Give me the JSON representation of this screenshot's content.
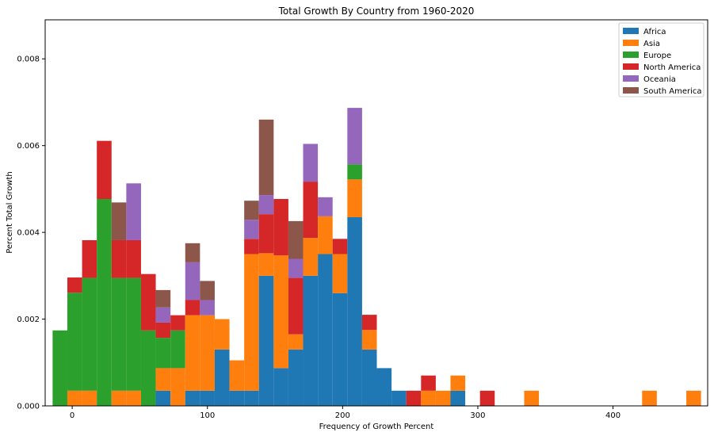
{
  "chart_data": {
    "type": "bar",
    "stacked": true,
    "title": "Total Growth By Country from 1960-2020",
    "xlabel": "Frequency of Growth Percent",
    "ylabel": "Percent Total Growth",
    "xlim": [
      -20,
      470
    ],
    "ylim": [
      0,
      0.0089
    ],
    "xticks": [
      0,
      100,
      200,
      300,
      400
    ],
    "yticks": [
      0,
      0.002,
      0.004,
      0.006,
      0.008
    ],
    "ytick_labels": [
      "0.000",
      "0.002",
      "0.004",
      "0.006",
      "0.008"
    ],
    "grid": false,
    "legend_position": "top-right",
    "bin_start": -14.5,
    "bin_width": 10.9,
    "bins": 44,
    "series": [
      {
        "name": "Africa",
        "color": "#1f77b4",
        "values": [
          0,
          0,
          0,
          0,
          0,
          0,
          0,
          0.00035,
          0,
          0.00035,
          0.00035,
          0.0013,
          0.00035,
          0.00035,
          0.003,
          0.00087,
          0.0013,
          0.003,
          0.0035,
          0.0026,
          0.00435,
          0.0013,
          0.00087,
          0.00035,
          0,
          0,
          0,
          0.00035,
          0,
          0,
          0,
          0,
          0,
          0,
          0,
          0,
          0,
          0,
          0,
          0,
          0,
          0,
          0,
          0
        ]
      },
      {
        "name": "Asia",
        "color": "#ff7f0e",
        "values": [
          0,
          0.00035,
          0.00035,
          0,
          0.00035,
          0.00035,
          0,
          0.00052,
          0.00087,
          0.00174,
          0.00174,
          0.0007,
          0.0007,
          0.00315,
          0.00052,
          0.0026,
          0.00035,
          0.00087,
          0.00087,
          0.0009,
          0.00087,
          0.00045,
          0,
          0,
          0,
          0.00035,
          0.00035,
          0.00035,
          0,
          0,
          0,
          0,
          0.00035,
          0,
          0,
          0,
          0,
          0,
          0,
          0,
          0.00035,
          0,
          0,
          0.00035
        ]
      },
      {
        "name": "Europe",
        "color": "#2ca02c",
        "values": [
          0.00174,
          0.00226,
          0.0026,
          0.00477,
          0.0026,
          0.0026,
          0.00174,
          0.0007,
          0.00087,
          0,
          0,
          0,
          0,
          0,
          0,
          0,
          0,
          0,
          0,
          0,
          0.00035,
          0,
          0,
          0,
          0,
          0,
          0,
          0,
          0,
          0,
          0,
          0,
          0,
          0,
          0,
          0,
          0,
          0,
          0,
          0,
          0,
          0,
          0,
          0
        ]
      },
      {
        "name": "North America",
        "color": "#d62728",
        "values": [
          0,
          0.00035,
          0.00087,
          0.00134,
          0.00087,
          0.00087,
          0.0013,
          0.00035,
          0.00035,
          0.00035,
          0,
          0,
          0,
          0.00035,
          0.0009,
          0.0013,
          0.0013,
          0.0013,
          0,
          0.00035,
          0,
          0.00035,
          0,
          0,
          0.00035,
          0.00035,
          0,
          0,
          0,
          0.00035,
          0,
          0,
          0,
          0,
          0,
          0,
          0,
          0,
          0,
          0,
          0,
          0,
          0,
          0
        ]
      },
      {
        "name": "Oceania",
        "color": "#9467bd",
        "values": [
          0,
          0,
          0,
          0,
          0,
          0.00131,
          0,
          0.00035,
          0,
          0.00087,
          0.00035,
          0,
          0,
          0.00044,
          0.00044,
          0,
          0.00044,
          0.00087,
          0.00044,
          0,
          0.0013,
          0,
          0,
          0,
          0,
          0,
          0,
          0,
          0,
          0,
          0,
          0,
          0,
          0,
          0,
          0,
          0,
          0,
          0,
          0,
          0,
          0,
          0,
          0
        ]
      },
      {
        "name": "South America",
        "color": "#8c564b",
        "values": [
          0,
          0,
          0,
          0,
          0.00087,
          0,
          0,
          0.0004,
          0,
          0.00044,
          0.00044,
          0,
          0,
          0.00044,
          0.00174,
          0,
          0.00087,
          0,
          0,
          0,
          0,
          0,
          0,
          0,
          0,
          0,
          0,
          0,
          0,
          0,
          0,
          0,
          0,
          0,
          0,
          0,
          0,
          0,
          0,
          0,
          0,
          0,
          0,
          0
        ]
      }
    ]
  }
}
